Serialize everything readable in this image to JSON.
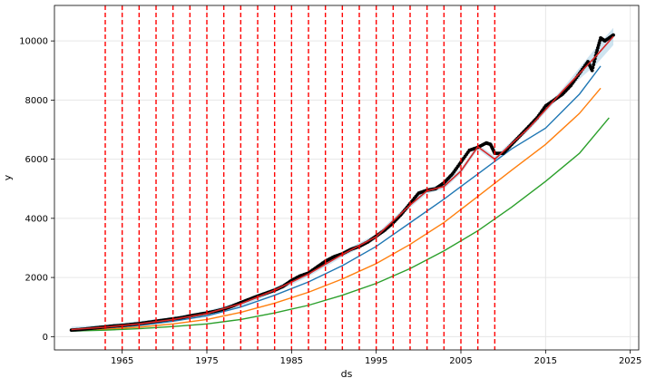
{
  "chart_data": {
    "type": "line",
    "title": "",
    "xlabel": "ds",
    "ylabel": "y",
    "xlim": [
      1957,
      2026
    ],
    "ylim": [
      -450,
      11200
    ],
    "grid": true,
    "legend": "none",
    "x_ticks": [
      1965,
      1975,
      1985,
      1995,
      2005,
      2015,
      2025
    ],
    "x_tick_labels": [
      "1965",
      "1975",
      "1985",
      "1995",
      "2005",
      "2015",
      "2025"
    ],
    "y_ticks": [
      0,
      2000,
      4000,
      6000,
      8000,
      10000
    ],
    "y_tick_labels": [
      "0",
      "2000",
      "4000",
      "6000",
      "8000",
      "10000"
    ],
    "changepoints": [
      1963,
      1965,
      1967,
      1969,
      1971,
      1973,
      1975,
      1977,
      1979,
      1981,
      1983,
      1985,
      1987,
      1989,
      1991,
      1993,
      1995,
      1997,
      1999,
      2001,
      2003,
      2005,
      2007,
      2009
    ],
    "observed": {
      "x": [
        1959,
        1960,
        1961,
        1962,
        1963,
        1964,
        1965,
        1966,
        1967,
        1968,
        1969,
        1970,
        1971,
        1972,
        1973,
        1974,
        1975,
        1976,
        1977,
        1978,
        1979,
        1980,
        1981,
        1982,
        1983,
        1984,
        1985,
        1986,
        1987,
        1988,
        1989,
        1990,
        1991,
        1992,
        1993,
        1994,
        1995,
        1996,
        1997,
        1998,
        1999,
        2000,
        2001,
        2002,
        2003,
        2004,
        2005,
        2006,
        2007,
        2008,
        2008.5,
        2009,
        2010,
        2011,
        2012,
        2013,
        2014,
        2015,
        2016,
        2017,
        2018,
        2019,
        2020,
        2020.5,
        2021,
        2021.5,
        2022,
        2023
      ],
      "y": [
        220,
        240,
        270,
        300,
        330,
        360,
        380,
        410,
        440,
        480,
        520,
        560,
        600,
        640,
        700,
        750,
        800,
        860,
        930,
        1030,
        1150,
        1260,
        1370,
        1470,
        1570,
        1700,
        1900,
        2050,
        2150,
        2350,
        2550,
        2700,
        2800,
        2950,
        3050,
        3200,
        3400,
        3600,
        3850,
        4150,
        4500,
        4850,
        4950,
        5000,
        5200,
        5500,
        5900,
        6300,
        6400,
        6550,
        6500,
        6200,
        6200,
        6500,
        6800,
        7100,
        7400,
        7800,
        8000,
        8200,
        8500,
        8900,
        9300,
        9000,
        9600,
        10100,
        10000,
        10200
      ]
    },
    "fit": {
      "x": [
        1959,
        1963,
        1967,
        1971,
        1975,
        1979,
        1983,
        1987,
        1991,
        1995,
        1999,
        2001,
        2003,
        2005,
        2007,
        2009,
        2013,
        2017,
        2021,
        2023
      ],
      "y": [
        240,
        320,
        430,
        580,
        780,
        1110,
        1570,
        2120,
        2780,
        3380,
        4450,
        4930,
        5080,
        5600,
        6420,
        6000,
        7050,
        8300,
        9500,
        10150
      ]
    },
    "series": [
      {
        "color": "#1f77b4",
        "x": [
          1959,
          1963,
          1967,
          1971,
          1975,
          1979,
          1983,
          1987,
          1991,
          1995,
          1999,
          2003,
          2007,
          2011,
          2015,
          2019,
          2021.5
        ],
        "y": [
          230,
          280,
          380,
          520,
          700,
          1000,
          1400,
          1850,
          2400,
          3050,
          3850,
          4650,
          5500,
          6350,
          7050,
          8200,
          9150
        ]
      },
      {
        "color": "#ff7f0e",
        "x": [
          1959,
          1963,
          1967,
          1971,
          1975,
          1979,
          1983,
          1987,
          1991,
          1995,
          1999,
          2003,
          2007,
          2011,
          2015,
          2019,
          2021.5
        ],
        "y": [
          210,
          250,
          320,
          430,
          580,
          820,
          1130,
          1500,
          1950,
          2470,
          3120,
          3860,
          4740,
          5630,
          6500,
          7550,
          8400
        ]
      },
      {
        "color": "#2ca02c",
        "x": [
          1959,
          1963,
          1967,
          1971,
          1975,
          1979,
          1983,
          1987,
          1991,
          1995,
          1999,
          2003,
          2007,
          2011,
          2015,
          2019,
          2022.5
        ],
        "y": [
          190,
          220,
          270,
          340,
          430,
          580,
          800,
          1060,
          1400,
          1800,
          2300,
          2900,
          3580,
          4380,
          5250,
          6200,
          7400
        ]
      }
    ],
    "colors": {
      "observed": "#000000",
      "fit": "#d62728",
      "band": "#a6cee3",
      "changepoint": "#ff0000",
      "grid": "#e6e6e6"
    }
  }
}
